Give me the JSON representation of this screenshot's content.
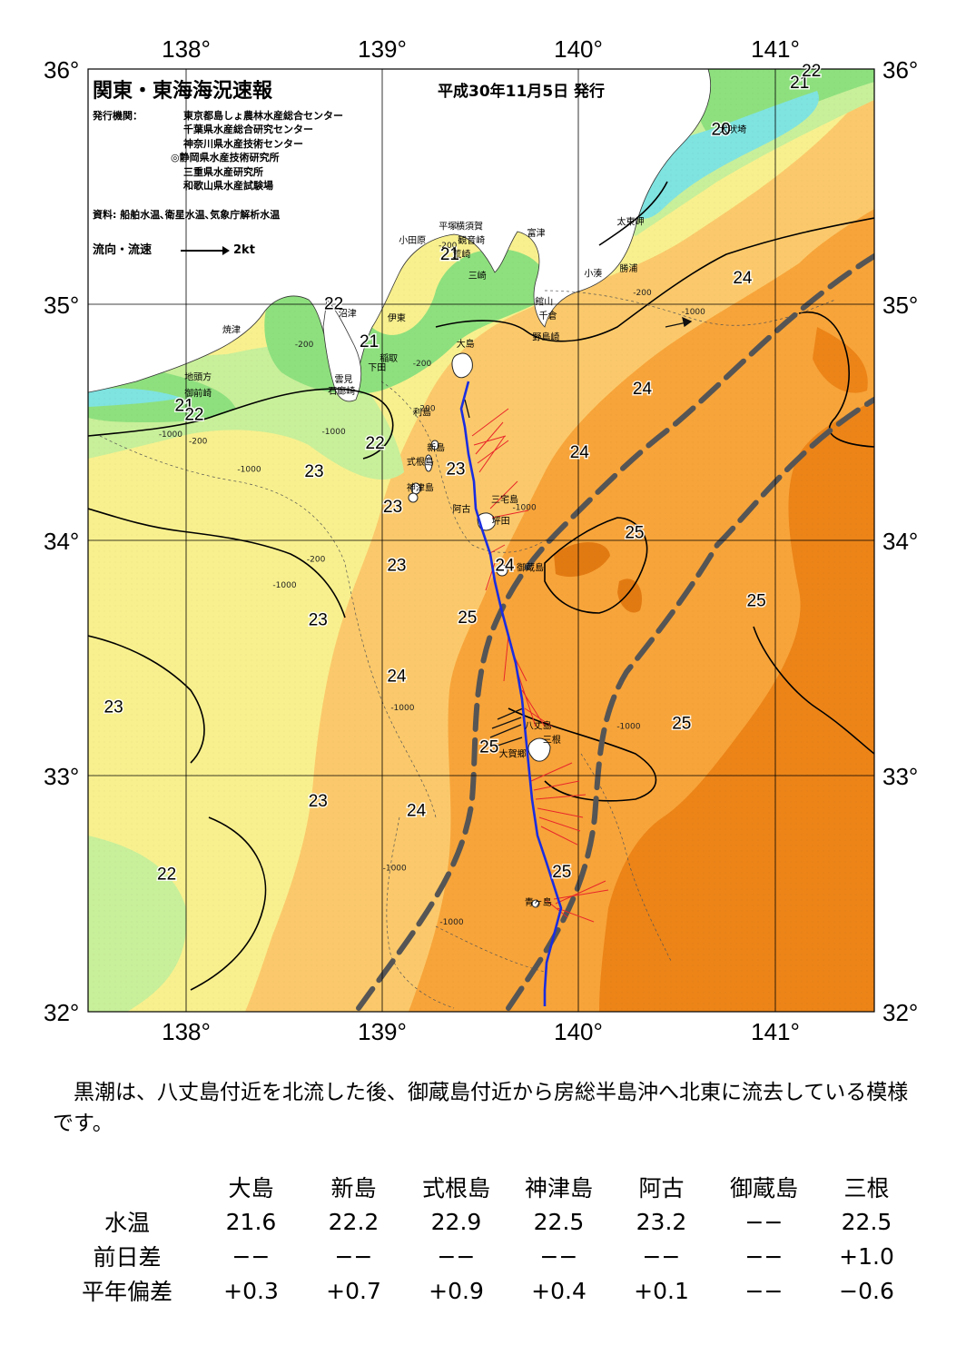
{
  "header": {
    "title": "関東・東海海況速報",
    "issue_date": "平成30年11月5日 発行",
    "publishers_label": "発行機関：",
    "publishers": [
      "東京都島しょ農林水産総合センター",
      "千葉県水産総合研究センター",
      "神奈川県水産技術センター",
      "◎静岡県水産技術研究所",
      "三重県水産研究所",
      "和歌山県水産試験場"
    ],
    "sources": "資料: 船舶水温､衛星水温､気象庁解析水温",
    "legend_label": "流向・流速",
    "legend_speed": "2kt"
  },
  "map": {
    "lon_range": [
      137.5,
      141.5
    ],
    "lat_range": [
      32,
      36
    ],
    "lon_labels": [
      "138°",
      "139°",
      "140°",
      "141°"
    ],
    "lat_labels": [
      "36°",
      "35°",
      "34°",
      "33°",
      "32°"
    ],
    "isotherms": [
      {
        "label": "20",
        "lon": 140.72,
        "lat": 35.72
      },
      {
        "label": "21",
        "lon": 141.12,
        "lat": 35.92
      },
      {
        "label": "22",
        "lon": 141.18,
        "lat": 35.97
      },
      {
        "label": "21",
        "lon": 139.34,
        "lat": 35.19
      },
      {
        "label": "22",
        "lon": 138.75,
        "lat": 34.98
      },
      {
        "label": "21",
        "lon": 138.93,
        "lat": 34.82
      },
      {
        "label": "21",
        "lon": 137.99,
        "lat": 34.55
      },
      {
        "label": "22",
        "lon": 138.04,
        "lat": 34.51
      },
      {
        "label": "22",
        "lon": 138.96,
        "lat": 34.39
      },
      {
        "label": "23",
        "lon": 138.65,
        "lat": 34.27
      },
      {
        "label": "23",
        "lon": 139.37,
        "lat": 34.28
      },
      {
        "label": "23",
        "lon": 139.05,
        "lat": 34.12
      },
      {
        "label": "24",
        "lon": 140.83,
        "lat": 35.09
      },
      {
        "label": "24",
        "lon": 140.32,
        "lat": 34.62
      },
      {
        "label": "24",
        "lon": 140.0,
        "lat": 34.35
      },
      {
        "label": "25",
        "lon": 140.28,
        "lat": 34.01
      },
      {
        "label": "24",
        "lon": 139.62,
        "lat": 33.87
      },
      {
        "label": "23",
        "lon": 139.07,
        "lat": 33.87
      },
      {
        "label": "25",
        "lon": 140.9,
        "lat": 33.72
      },
      {
        "label": "23",
        "lon": 138.67,
        "lat": 33.64
      },
      {
        "label": "25",
        "lon": 139.43,
        "lat": 33.65
      },
      {
        "label": "24",
        "lon": 139.07,
        "lat": 33.4
      },
      {
        "label": "23",
        "lon": 137.63,
        "lat": 33.27
      },
      {
        "label": "25",
        "lon": 140.52,
        "lat": 33.2
      },
      {
        "label": "25",
        "lon": 139.54,
        "lat": 33.1
      },
      {
        "label": "23",
        "lon": 138.67,
        "lat": 32.87
      },
      {
        "label": "24",
        "lon": 139.17,
        "lat": 32.83
      },
      {
        "label": "22",
        "lon": 137.9,
        "lat": 32.56
      },
      {
        "label": "25",
        "lon": 139.91,
        "lat": 32.57
      }
    ],
    "place_names": [
      {
        "name": "小田原",
        "lon": 139.15,
        "lat": 35.26
      },
      {
        "name": "平塚",
        "lon": 139.33,
        "lat": 35.32
      },
      {
        "name": "横須賀",
        "lon": 139.44,
        "lat": 35.32
      },
      {
        "name": "観音崎",
        "lon": 139.45,
        "lat": 35.26
      },
      {
        "name": "荒崎",
        "lon": 139.4,
        "lat": 35.2
      },
      {
        "name": "三崎",
        "lon": 139.48,
        "lat": 35.11
      },
      {
        "name": "富津",
        "lon": 139.78,
        "lat": 35.29
      },
      {
        "name": "太東岬",
        "lon": 140.26,
        "lat": 35.34
      },
      {
        "name": "勝浦",
        "lon": 140.25,
        "lat": 35.14
      },
      {
        "name": "小湊",
        "lon": 140.07,
        "lat": 35.12
      },
      {
        "name": "館山",
        "lon": 139.82,
        "lat": 35.0
      },
      {
        "name": "千倉",
        "lon": 139.84,
        "lat": 34.94
      },
      {
        "name": "野島崎",
        "lon": 139.83,
        "lat": 34.85
      },
      {
        "name": "犬吠埼",
        "lon": 140.78,
        "lat": 35.73
      },
      {
        "name": "沼津",
        "lon": 138.82,
        "lat": 34.95
      },
      {
        "name": "伊東",
        "lon": 139.07,
        "lat": 34.93
      },
      {
        "name": "焼津",
        "lon": 138.23,
        "lat": 34.88
      },
      {
        "name": "稲取",
        "lon": 139.03,
        "lat": 34.76
      },
      {
        "name": "下田",
        "lon": 138.97,
        "lat": 34.72
      },
      {
        "name": "雲見",
        "lon": 138.8,
        "lat": 34.67
      },
      {
        "name": "石廊崎",
        "lon": 138.79,
        "lat": 34.62
      },
      {
        "name": "大島",
        "lon": 139.42,
        "lat": 34.82
      },
      {
        "name": "地頭方",
        "lon": 138.06,
        "lat": 34.68
      },
      {
        "name": "御前崎",
        "lon": 138.06,
        "lat": 34.61
      },
      {
        "name": "利島",
        "lon": 139.2,
        "lat": 34.53
      },
      {
        "name": "新島",
        "lon": 139.27,
        "lat": 34.38
      },
      {
        "name": "式根島",
        "lon": 139.19,
        "lat": 34.32
      },
      {
        "name": "神津島",
        "lon": 139.19,
        "lat": 34.21
      },
      {
        "name": "阿古",
        "lon": 139.4,
        "lat": 34.12
      },
      {
        "name": "三宅島",
        "lon": 139.62,
        "lat": 34.16
      },
      {
        "name": "坪田",
        "lon": 139.6,
        "lat": 34.07
      },
      {
        "name": "御蔵島",
        "lon": 139.75,
        "lat": 33.87
      },
      {
        "name": "八丈島",
        "lon": 139.79,
        "lat": 33.2
      },
      {
        "name": "三根",
        "lon": 139.86,
        "lat": 33.14
      },
      {
        "name": "大賀郷",
        "lon": 139.66,
        "lat": 33.08
      },
      {
        "name": "青ヶ島",
        "lon": 139.79,
        "lat": 32.45
      }
    ],
    "depth_labels": [
      {
        "label": "-200",
        "lon": 139.33,
        "lat": 35.24
      },
      {
        "label": "-200",
        "lon": 140.32,
        "lat": 35.04
      },
      {
        "label": "-1000",
        "lon": 140.58,
        "lat": 34.96
      },
      {
        "label": "-200",
        "lon": 138.6,
        "lat": 34.82
      },
      {
        "label": "-200",
        "lon": 139.2,
        "lat": 34.74
      },
      {
        "label": "-1000",
        "lon": 138.75,
        "lat": 34.45
      },
      {
        "label": "-1000",
        "lon": 137.92,
        "lat": 34.44
      },
      {
        "label": "-200",
        "lon": 138.06,
        "lat": 34.41
      },
      {
        "label": "-1000",
        "lon": 138.32,
        "lat": 34.29
      },
      {
        "label": "-200",
        "lon": 139.22,
        "lat": 34.55
      },
      {
        "label": "-1000",
        "lon": 139.72,
        "lat": 34.13
      },
      {
        "label": "-200",
        "lon": 138.66,
        "lat": 33.91
      },
      {
        "label": "-1000",
        "lon": 138.5,
        "lat": 33.8
      },
      {
        "label": "-1000",
        "lon": 139.1,
        "lat": 33.28
      },
      {
        "label": "-1000",
        "lon": 140.25,
        "lat": 33.2
      },
      {
        "label": "-1000",
        "lon": 139.06,
        "lat": 32.6
      },
      {
        "label": "-1000",
        "lon": 139.35,
        "lat": 32.37
      }
    ]
  },
  "summary": "黒潮は、八丈島付近を北流した後、御蔵島付近から房総半島沖へ北東に流去している模様です。",
  "table": {
    "stations": [
      "大島",
      "新島",
      "式根島",
      "神津島",
      "阿古",
      "御蔵島",
      "三根"
    ],
    "rows": [
      {
        "label": "水温",
        "values": [
          "21.6",
          "22.2",
          "22.9",
          "22.5",
          "23.2",
          "−−",
          "22.5"
        ]
      },
      {
        "label": "前日差",
        "values": [
          "−−",
          "−−",
          "−−",
          "−−",
          "−−",
          "−−",
          "+1.0"
        ]
      },
      {
        "label": "平年偏差",
        "values": [
          "+0.3",
          "+0.7",
          "+0.9",
          "+0.4",
          "+0.1",
          "−−",
          "−0.6"
        ]
      }
    ]
  },
  "colors": {
    "temp_20": "#7fe3e0",
    "temp_21": "#8ee07e",
    "temp_22": "#c8ef9a",
    "temp_23": "#f8f08e",
    "temp_24": "#fbc96b",
    "temp_25": "#f7a43a",
    "temp_26": "#ec8418",
    "kuroshio_axis": "#555555",
    "ship_track": "#1a2de0",
    "current_vectors": "#e8262a"
  }
}
